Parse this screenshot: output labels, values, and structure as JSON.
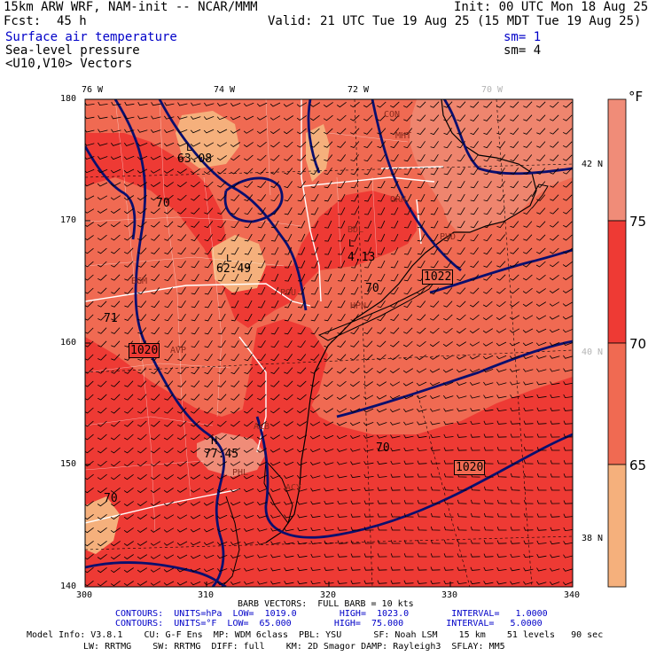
{
  "header": {
    "model_title": "15km ARW WRF, NAM-init -- NCAR/MMM",
    "init": "Init: 00 UTC Mon 18 Aug 25",
    "fcst_label": "Fcst:",
    "fcst_value": "45 h",
    "valid": "Valid: 21 UTC Tue 19 Aug 25 (15 MDT Tue 19 Aug 25)"
  },
  "fields": [
    {
      "name": "Surface air temperature",
      "sm": "sm= 1",
      "color": "#0000c8"
    },
    {
      "name": "Sea-level pressure",
      "sm": "sm= 4",
      "color": "#000000"
    },
    {
      "name": "<U10,V10> Vectors",
      "sm": "",
      "color": "#000000"
    }
  ],
  "top_lon_labels": [
    "76 W",
    "74 W",
    "72 W",
    "70 W"
  ],
  "right_lat_labels": [
    "42 N",
    "40 N",
    "38 N"
  ],
  "x_ticks": [
    "300",
    "310",
    "320",
    "330",
    "340"
  ],
  "y_ticks": [
    "180",
    "170",
    "160",
    "150",
    "140"
  ],
  "map_labels": {
    "low1_value": "63.08",
    "low2_value": "62.49",
    "low3_value": "4.13",
    "high_value": "77.45",
    "low_letter": "L",
    "high_letter": "H",
    "contour_70_a": "70",
    "contour_70_b": "70",
    "contour_70_c": "70",
    "contour_70_d": "70",
    "contour_71": "71",
    "contour_1020_a": "1020",
    "contour_1020_b": "1020",
    "contour_1022": "1022",
    "stations": [
      "CON",
      "MHT",
      "ORH",
      "BDL",
      "POU",
      "AVP",
      "BGM",
      "PHL",
      "ACY",
      "HPN",
      "ALB",
      "PVD"
    ]
  },
  "colorbar": {
    "unit": "°F",
    "labels": [
      "75",
      "70",
      "65"
    ],
    "colors": [
      "#f08c78",
      "#ee3a34",
      "#f06a52",
      "#f5b07c"
    ]
  },
  "colors": {
    "temp_65_70": "#f06a52",
    "temp_70_75": "#ee3a34",
    "temp_below_65": "#f5b07c",
    "temp_above_75": "#f08c78",
    "land": "#ecd7c3",
    "pressure_contour": "#000a6e"
  },
  "footer": {
    "barb_line": "BARB VECTORS:  FULL BARB = 10 kts",
    "contours1": "CONTOURS:  UNITS=hPa  LOW=  1019.0        HIGH=  1023.0        INTERVAL=   1.0000",
    "contours2": "CONTOURS:  UNITS=°F  LOW=  65.000        HIGH=  75.000        INTERVAL=   5.0000",
    "model_info1": "Model Info: V3.8.1    CU: G-F Ens  MP: WDM 6class  PBL: YSU      SF: Noah LSM    15 km    51 levels   90 sec",
    "model_info2": "LW: RRTMG    SW: RRTMG  DIFF: full    KM: 2D Smagor DAMP: Rayleigh3  SFLAY: MM5"
  }
}
